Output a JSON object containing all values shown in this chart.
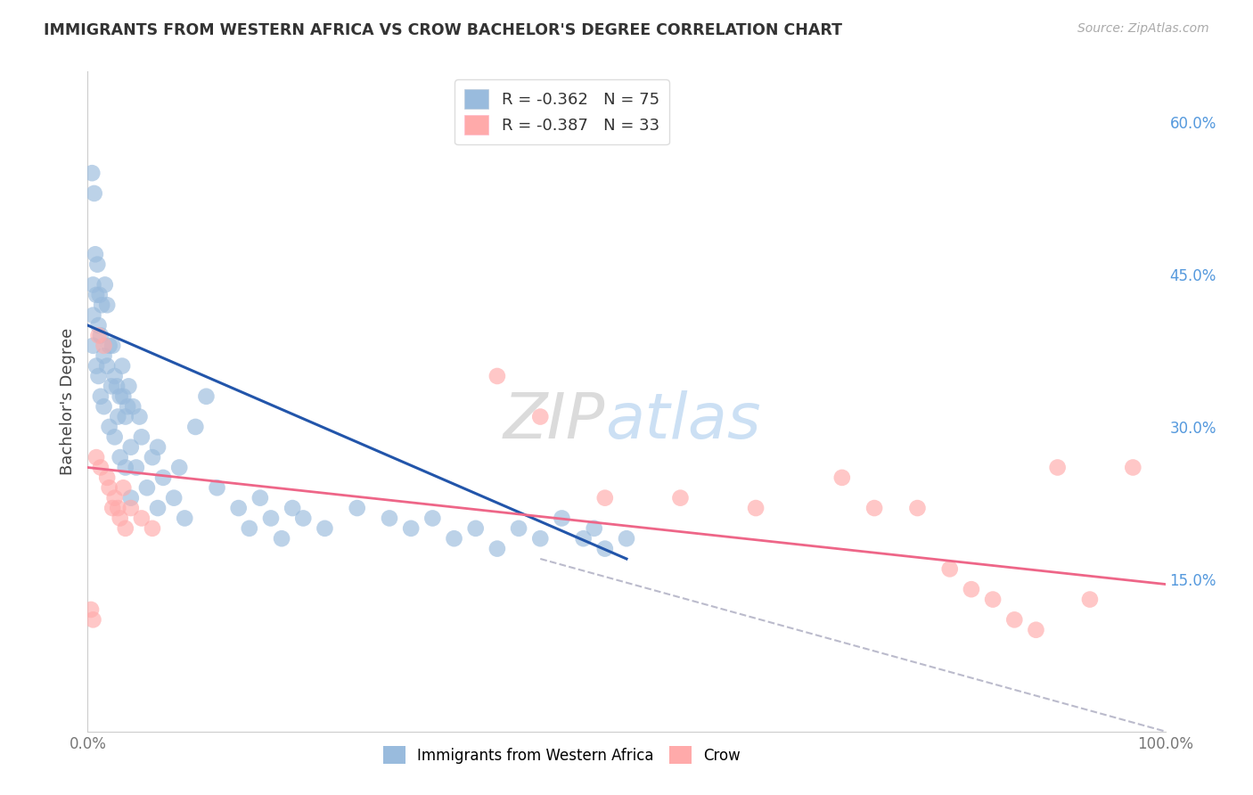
{
  "title": "IMMIGRANTS FROM WESTERN AFRICA VS CROW BACHELOR'S DEGREE CORRELATION CHART",
  "source": "Source: ZipAtlas.com",
  "ylabel": "Bachelor's Degree",
  "xlim": [
    0.0,
    100.0
  ],
  "ylim": [
    0.0,
    65.0
  ],
  "right_yticks": [
    15.0,
    30.0,
    45.0,
    60.0
  ],
  "right_ytick_labels": [
    "15.0%",
    "30.0%",
    "45.0%",
    "60.0%"
  ],
  "xtick_positions": [
    0.0,
    20.0,
    40.0,
    60.0,
    80.0,
    100.0
  ],
  "xtick_labels": [
    "0.0%",
    "",
    "",
    "",
    "",
    "100.0%"
  ],
  "legend_r1": "R = ",
  "legend_v1": "-0.362",
  "legend_n1": "  N = ",
  "legend_nv1": "75",
  "legend_r2": "R = ",
  "legend_v2": "-0.387",
  "legend_n2": "  N = ",
  "legend_nv2": "33",
  "color_blue": "#99BBDD",
  "color_pink": "#FFAAAA",
  "color_blue_line": "#2255AA",
  "color_pink_line": "#EE6688",
  "color_dashed": "#BBBBCC",
  "watermark_zip": "ZIP",
  "watermark_atlas": "atlas",
  "blue_scatter_x": [
    0.5,
    0.5,
    0.5,
    0.8,
    0.8,
    1.0,
    1.0,
    1.2,
    1.2,
    1.5,
    1.5,
    1.8,
    1.8,
    2.0,
    2.0,
    2.2,
    2.5,
    2.5,
    2.8,
    3.0,
    3.0,
    3.2,
    3.5,
    3.5,
    3.8,
    4.0,
    4.0,
    4.2,
    4.5,
    5.0,
    5.5,
    6.0,
    6.5,
    7.0,
    8.0,
    9.0,
    10.0,
    11.0,
    12.0,
    14.0,
    15.0,
    16.0,
    17.0,
    18.0,
    19.0,
    20.0,
    22.0,
    25.0,
    28.0,
    30.0,
    32.0,
    34.0,
    36.0,
    38.0,
    40.0,
    42.0,
    44.0,
    46.0,
    47.0,
    48.0,
    50.0,
    0.4,
    0.6,
    0.7,
    0.9,
    1.1,
    1.3,
    1.6,
    2.3,
    2.7,
    3.3,
    3.7,
    4.8,
    6.5,
    8.5
  ],
  "blue_scatter_y": [
    44.0,
    41.0,
    38.0,
    43.0,
    36.0,
    40.0,
    35.0,
    39.0,
    33.0,
    37.0,
    32.0,
    42.0,
    36.0,
    38.0,
    30.0,
    34.0,
    35.0,
    29.0,
    31.0,
    33.0,
    27.0,
    36.0,
    31.0,
    26.0,
    34.0,
    28.0,
    23.0,
    32.0,
    26.0,
    29.0,
    24.0,
    27.0,
    22.0,
    25.0,
    23.0,
    21.0,
    30.0,
    33.0,
    24.0,
    22.0,
    20.0,
    23.0,
    21.0,
    19.0,
    22.0,
    21.0,
    20.0,
    22.0,
    21.0,
    20.0,
    21.0,
    19.0,
    20.0,
    18.0,
    20.0,
    19.0,
    21.0,
    19.0,
    20.0,
    18.0,
    19.0,
    55.0,
    53.0,
    47.0,
    46.0,
    43.0,
    42.0,
    44.0,
    38.0,
    34.0,
    33.0,
    32.0,
    31.0,
    28.0,
    26.0
  ],
  "pink_scatter_x": [
    0.3,
    0.5,
    0.8,
    1.0,
    1.2,
    1.5,
    1.8,
    2.0,
    2.3,
    2.5,
    2.8,
    3.0,
    3.3,
    3.5,
    4.0,
    5.0,
    6.0,
    38.0,
    42.0,
    48.0,
    55.0,
    62.0,
    70.0,
    73.0,
    77.0,
    80.0,
    82.0,
    84.0,
    86.0,
    88.0,
    90.0,
    93.0,
    97.0
  ],
  "pink_scatter_y": [
    12.0,
    11.0,
    27.0,
    39.0,
    26.0,
    38.0,
    25.0,
    24.0,
    22.0,
    23.0,
    22.0,
    21.0,
    24.0,
    20.0,
    22.0,
    21.0,
    20.0,
    35.0,
    31.0,
    23.0,
    23.0,
    22.0,
    25.0,
    22.0,
    22.0,
    16.0,
    14.0,
    13.0,
    11.0,
    10.0,
    26.0,
    13.0,
    26.0
  ],
  "blue_line_x": [
    0.0,
    50.0
  ],
  "blue_line_y": [
    40.0,
    17.0
  ],
  "pink_line_x": [
    0.0,
    100.0
  ],
  "pink_line_y": [
    26.0,
    14.5
  ],
  "dashed_line_x": [
    42.0,
    100.0
  ],
  "dashed_line_y": [
    17.0,
    0.0
  ],
  "background_color": "#FFFFFF",
  "grid_color": "#DDDDEE"
}
